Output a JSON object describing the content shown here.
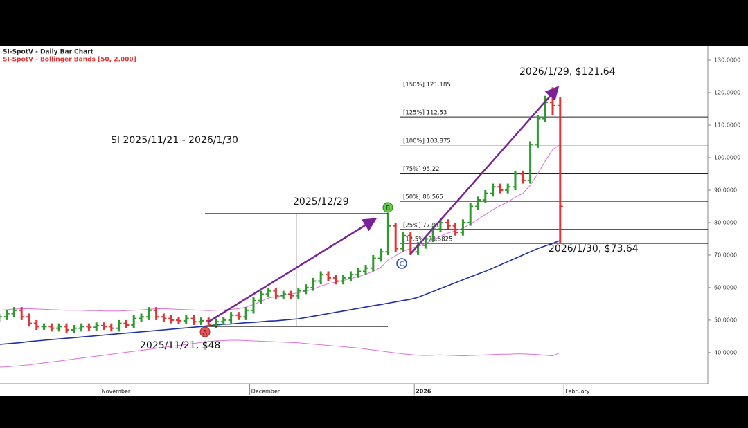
{
  "chart_data": {
    "type": "ohlc",
    "title": "SI-SpotV - Daily Bar Chart",
    "subtitle": "SI-SpotV - Bollinger Bands [50, 2.000]",
    "categories": [
      null,
      null,
      null,
      null,
      null,
      null,
      null,
      null,
      null,
      null,
      null,
      null,
      null,
      null,
      "November",
      null,
      null,
      null,
      null,
      null,
      null,
      null,
      null,
      null,
      null,
      null,
      null,
      null,
      null,
      null,
      null,
      null,
      null,
      null,
      "December",
      null,
      null,
      null,
      null,
      null,
      null,
      null,
      null,
      null,
      null,
      null,
      null,
      null,
      null,
      null,
      null,
      null,
      null,
      null,
      null,
      null,
      "2026",
      null,
      null,
      null,
      null,
      null,
      null,
      null,
      null,
      null,
      null,
      null,
      null,
      null,
      null,
      null,
      null,
      null,
      null,
      null,
      "February"
    ],
    "series": [
      {
        "up_color": "#2e9a2e",
        "down_color": "#e03535",
        "open": [
          50.5,
          51,
          52,
          53,
          51,
          49,
          48,
          48,
          47.5,
          48,
          47,
          47.5,
          48,
          47.8,
          48.3,
          48,
          47.5,
          49,
          48.5,
          50.5,
          51,
          53,
          51,
          50.5,
          50,
          49.8,
          50.5,
          49.5,
          49.8,
          48.6,
          49.5,
          50,
          51.5,
          51,
          53,
          56,
          58,
          59,
          57.5,
          58,
          57.5,
          59,
          60,
          62,
          64,
          63,
          62,
          63,
          64,
          65,
          66,
          69,
          71,
          79,
          72,
          76,
          71,
          73,
          75,
          78,
          80,
          79,
          77,
          80,
          85,
          87,
          89,
          91,
          90,
          91,
          95,
          93,
          104,
          112,
          117,
          116,
          null
        ],
        "high": [
          52,
          53,
          54,
          54,
          52,
          50,
          49,
          49,
          49,
          49,
          48.5,
          49,
          49,
          49.3,
          49.3,
          49,
          50,
          50,
          51.5,
          52,
          54,
          54,
          52,
          51.5,
          51,
          51.5,
          51.5,
          50.8,
          50.8,
          50.5,
          51,
          52.5,
          52.5,
          54,
          57,
          59,
          60,
          60,
          59,
          59,
          60,
          61,
          63,
          65,
          65,
          64,
          64,
          65,
          66,
          67,
          70,
          72,
          83,
          80,
          77,
          77,
          74,
          76,
          79,
          81,
          81,
          80,
          81,
          86,
          88,
          90,
          92,
          92,
          92,
          96,
          96,
          105,
          113,
          119,
          121.64,
          118.5,
          null
        ],
        "low": [
          49.5,
          50,
          51,
          50,
          48,
          47,
          47,
          46.5,
          46.5,
          46,
          46,
          46.5,
          46.8,
          46.8,
          47,
          46.5,
          46.5,
          47.5,
          47.5,
          49.5,
          50,
          50,
          49.5,
          49,
          48.8,
          48.8,
          48.5,
          48.5,
          48,
          47.6,
          48.5,
          49,
          50,
          50,
          52,
          55,
          57,
          56.5,
          56.5,
          56.5,
          56.5,
          58,
          59,
          61,
          62,
          61,
          61,
          62,
          63,
          64,
          65,
          68,
          70,
          71,
          71,
          70,
          70,
          72,
          74,
          77,
          78,
          76,
          76,
          79,
          84,
          86,
          88,
          89,
          89,
          90,
          92,
          92,
          103,
          111,
          113,
          73.64,
          null
        ],
        "close": [
          51,
          52,
          53,
          51,
          49,
          48,
          48,
          47.5,
          48,
          47,
          47.5,
          48,
          47.8,
          48.3,
          48,
          47.5,
          49,
          48.5,
          50.5,
          51,
          53,
          51,
          50.5,
          50,
          49.8,
          50.5,
          49.5,
          49.8,
          48.6,
          49.5,
          50,
          51.5,
          51,
          53,
          56,
          58,
          59,
          57.5,
          58,
          57.5,
          59,
          60,
          62,
          64,
          63,
          62,
          63,
          64,
          65,
          66,
          69,
          71,
          79,
          72,
          76,
          71,
          73,
          75,
          78,
          80,
          79,
          77,
          80,
          85,
          87,
          89,
          91,
          90,
          91,
          95,
          93,
          104,
          112,
          117,
          116,
          85,
          null
        ]
      }
    ],
    "bands": {
      "color": "#e070dc",
      "middle_color": "#1f2fa8",
      "upper": [
        53,
        53.2,
        53.4,
        53.5,
        53.5,
        53.4,
        53.3,
        53.2,
        53.1,
        53,
        53,
        53,
        52.9,
        52.9,
        52.8,
        52.8,
        52.8,
        52.9,
        53,
        53.1,
        53.3,
        53.5,
        53.5,
        53.4,
        53.3,
        53.2,
        53.1,
        53,
        52.9,
        53,
        53.1,
        53.3,
        53.5,
        54,
        54.8,
        55.8,
        56.8,
        57.2,
        57.6,
        58,
        58.4,
        58.9,
        59.6,
        60.5,
        61.2,
        61.7,
        62.2,
        62.8,
        63.4,
        64.1,
        65,
        66.2,
        68.5,
        69.8,
        71.2,
        72,
        72.8,
        73.6,
        74.6,
        75.8,
        76.8,
        77.5,
        78.3,
        79.6,
        81,
        82.5,
        84,
        85.2,
        86.4,
        87.8,
        89,
        91.5,
        95,
        99,
        102.5,
        104,
        null
      ],
      "middle": [
        42.5,
        42.7,
        42.9,
        43.1,
        43.4,
        43.6,
        43.8,
        44,
        44.2,
        44.4,
        44.6,
        44.8,
        45,
        45.2,
        45.4,
        45.6,
        45.8,
        46,
        46.2,
        46.4,
        46.6,
        46.8,
        47,
        47.2,
        47.4,
        47.6,
        47.8,
        48,
        48.3,
        48.5,
        48.7,
        48.8,
        49,
        49.2,
        49.3,
        49.5,
        49.7,
        49.8,
        50,
        50.2,
        50.4,
        50.8,
        51.2,
        51.6,
        52,
        52.4,
        52.8,
        53.2,
        53.6,
        54,
        54.4,
        54.8,
        55.2,
        55.6,
        56,
        56.4,
        57,
        57.9,
        58.8,
        59.7,
        60.6,
        61.5,
        62.4,
        63.3,
        64.2,
        65,
        66,
        67,
        68,
        69,
        70,
        71,
        72,
        72.8,
        73.6,
        74.5,
        null
      ],
      "lower": [
        35.5,
        35.6,
        35.8,
        36,
        36.2,
        36.5,
        36.8,
        37.1,
        37.4,
        37.7,
        38,
        38.3,
        38.6,
        38.9,
        39.2,
        39.5,
        39.8,
        40.1,
        40.4,
        40.7,
        41,
        41.3,
        41.6,
        41.9,
        42.2,
        42.5,
        42.8,
        43.1,
        43.4,
        43.6,
        43.7,
        43.8,
        43.8,
        43.7,
        43.6,
        43.5,
        43.4,
        43.3,
        43.2,
        43.1,
        43,
        42.8,
        42.6,
        42.4,
        42.2,
        42,
        41.8,
        41.6,
        41.4,
        41.1,
        40.8,
        40.5,
        40.2,
        39.9,
        39.6,
        39.4,
        39.2,
        39.1,
        39.2,
        39.3,
        39.2,
        39.1,
        39,
        39.1,
        39.2,
        39.3,
        39.4,
        39.5,
        39.5,
        39.6,
        39.6,
        39.5,
        39.4,
        39.2,
        39,
        40,
        null
      ]
    },
    "fib_levels": [
      {
        "value": 121.185,
        "label": "[150%] 121.185"
      },
      {
        "value": 112.53,
        "label": "[125%] 112.53"
      },
      {
        "value": 103.875,
        "label": "[100%] 103.875"
      },
      {
        "value": 95.22,
        "label": "[75%] 95.22"
      },
      {
        "value": 86.565,
        "label": "[50%] 86.565"
      },
      {
        "value": 77.91,
        "label": "[25%] 77.91"
      },
      {
        "value": 73.5825,
        "label": "[12.5%] 73.5825"
      }
    ],
    "ylim": [
      30.4,
      133.2
    ],
    "yticks": [
      {
        "value": 40,
        "label": "40.0000"
      },
      {
        "value": 50,
        "label": "50.0000"
      },
      {
        "value": 60,
        "label": "60.0000"
      },
      {
        "value": 70,
        "label": "70.0000"
      },
      {
        "value": 80,
        "label": "80.0000"
      },
      {
        "value": 90,
        "label": "90.0000"
      },
      {
        "value": 100,
        "label": "100.0000"
      },
      {
        "value": 110,
        "label": "110.0000"
      },
      {
        "value": 120,
        "label": "120.0000"
      },
      {
        "value": 130,
        "label": "130.0000"
      }
    ],
    "annotations": [
      "SI 2025/11/21 - 2026/1/30",
      "2025/12/29",
      "2025/11/21, $48",
      "2026/1/29, $121.64",
      "2026/1/30, $73.64"
    ],
    "markers": [
      "A",
      "B",
      "C"
    ]
  }
}
